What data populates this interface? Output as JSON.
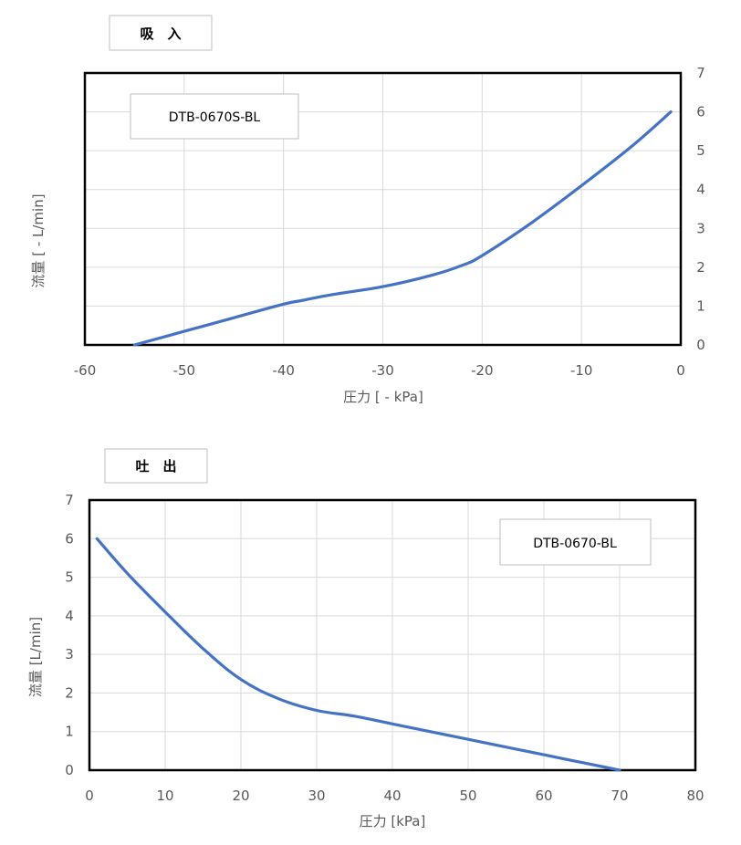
{
  "chart_data": [
    {
      "type": "line",
      "heading": "吸　入",
      "model_label": "DTB-0670S-BL",
      "xlabel": "圧力 [ - kPa]",
      "ylabel": "流量 [ - L/min]",
      "xlim": [
        -60,
        0
      ],
      "ylim": [
        0,
        7
      ],
      "x_ticks": [
        "-60",
        "-50",
        "-40",
        "-30",
        "-20",
        "-10",
        "0"
      ],
      "y_ticks": [
        "0",
        "1",
        "2",
        "3",
        "4",
        "5",
        "6",
        "7"
      ],
      "y_axis_side": "right",
      "grid": true,
      "colors": {
        "series": "#4472c4"
      },
      "series": [
        {
          "x": [
            -55,
            -50,
            -45,
            -40,
            -38,
            -35,
            -30,
            -25,
            -22,
            -20,
            -15,
            -10,
            -5,
            -1
          ],
          "y": [
            0,
            0.35,
            0.7,
            1.05,
            1.15,
            1.3,
            1.5,
            1.8,
            2.05,
            2.3,
            3.15,
            4.1,
            5.1,
            6.0
          ]
        }
      ]
    },
    {
      "type": "line",
      "heading": "吐　出",
      "model_label": "DTB-0670-BL",
      "xlabel": "圧力 [kPa]",
      "ylabel": "流量 [L/min]",
      "xlim": [
        0,
        80
      ],
      "ylim": [
        0,
        7
      ],
      "x_ticks": [
        "0",
        "10",
        "20",
        "30",
        "40",
        "50",
        "60",
        "70",
        "80"
      ],
      "y_ticks": [
        "0",
        "1",
        "2",
        "3",
        "4",
        "5",
        "6",
        "7"
      ],
      "y_axis_side": "left",
      "grid": true,
      "colors": {
        "series": "#4472c4"
      },
      "series": [
        {
          "x": [
            1,
            5,
            10,
            15,
            20,
            25,
            30,
            35,
            40,
            50,
            60,
            70
          ],
          "y": [
            6.0,
            5.1,
            4.1,
            3.15,
            2.35,
            1.85,
            1.55,
            1.4,
            1.2,
            0.8,
            0.4,
            0
          ]
        }
      ]
    }
  ]
}
